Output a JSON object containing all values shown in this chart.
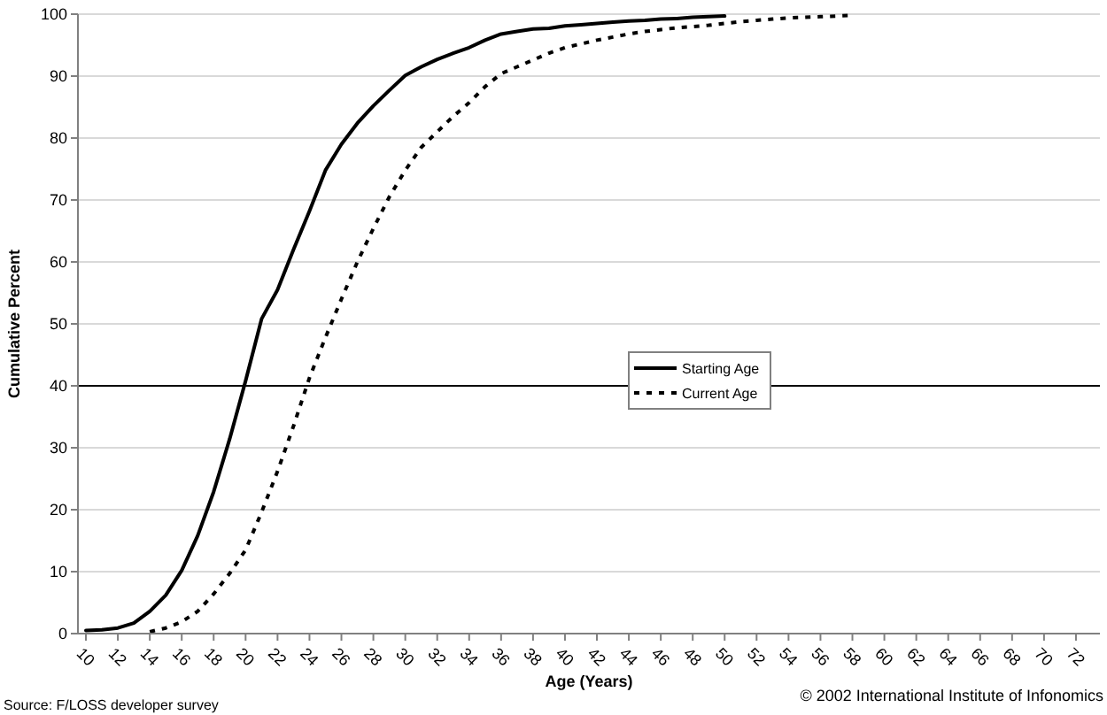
{
  "chart_data": {
    "type": "line",
    "xlabel": "Age (Years)",
    "ylabel": "Cumulative Percent",
    "xlim": [
      9.5,
      73.5
    ],
    "xticks": [
      10,
      12,
      14,
      16,
      18,
      20,
      22,
      24,
      26,
      28,
      30,
      32,
      34,
      36,
      38,
      40,
      42,
      44,
      46,
      48,
      50,
      52,
      54,
      56,
      58,
      60,
      62,
      64,
      66,
      68,
      70,
      72
    ],
    "ylim": [
      0,
      100
    ],
    "yticks": [
      0,
      10,
      20,
      30,
      40,
      50,
      60,
      70,
      80,
      90,
      100
    ],
    "grid": "y",
    "legend": "right",
    "marker": "none",
    "ref_lines": [
      {
        "axis": "y",
        "value": 40,
        "color": "#000000"
      }
    ],
    "annotations": [
      "Source: F/LOSS developer survey",
      "© 2002 International Institute of Infonomics"
    ],
    "series": [
      {
        "name": "Starting Age",
        "color": "#000000",
        "line_style": "solid",
        "x": [
          10,
          11,
          12,
          13,
          14,
          15,
          16,
          17,
          18,
          19,
          20,
          21,
          22,
          23,
          24,
          25,
          26,
          27,
          28,
          29,
          30,
          31,
          32,
          33,
          34,
          35,
          36,
          37,
          38,
          39,
          40,
          41,
          42,
          43,
          44,
          45,
          46,
          47,
          48,
          49,
          50
        ],
        "values": [
          0.5,
          0.6,
          0.9,
          1.7,
          3.6,
          6.2,
          10.2,
          15.8,
          22.9,
          31.4,
          40.8,
          50.8,
          55.5,
          62,
          68.2,
          74.8,
          79,
          82.4,
          85.2,
          87.7,
          90.1,
          91.5,
          92.7,
          93.7,
          94.6,
          95.8,
          96.8,
          97.2,
          97.6,
          97.7,
          98.1,
          98.3,
          98.5,
          98.7,
          98.9,
          99,
          99.2,
          99.3,
          99.5,
          99.6,
          99.7
        ]
      },
      {
        "name": "Current Age",
        "color": "#000000",
        "line_style": "dotted",
        "x": [
          14,
          15,
          16,
          17,
          18,
          19,
          20,
          21,
          22,
          23,
          24,
          25,
          26,
          27,
          28,
          29,
          30,
          31,
          32,
          33,
          34,
          35,
          36,
          37,
          38,
          39,
          40,
          41,
          42,
          43,
          44,
          45,
          46,
          47,
          48,
          49,
          50,
          51,
          52,
          53,
          54,
          55,
          56,
          57,
          58
        ],
        "values": [
          0.3,
          0.9,
          1.9,
          3.6,
          6.4,
          9.7,
          13.5,
          19.6,
          26.2,
          33.5,
          41.3,
          47.8,
          54,
          60,
          65.4,
          70.5,
          74.8,
          78.5,
          81,
          83.5,
          85.7,
          88.3,
          90.4,
          91.5,
          92.6,
          93.7,
          94.6,
          95.2,
          95.8,
          96.3,
          96.8,
          97.2,
          97.5,
          97.8,
          98,
          98.2,
          98.5,
          98.8,
          99,
          99.2,
          99.4,
          99.5,
          99.6,
          99.7,
          99.8
        ]
      }
    ]
  }
}
